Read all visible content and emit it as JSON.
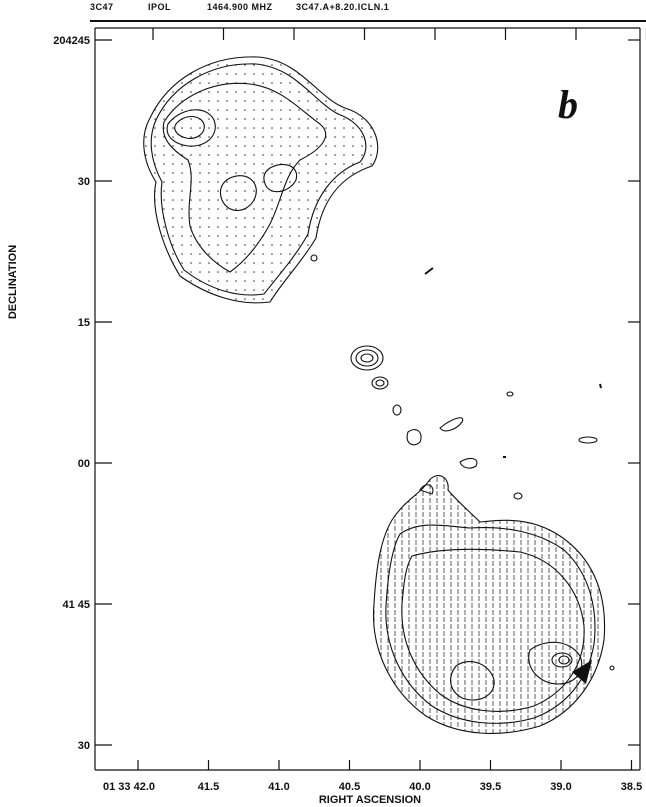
{
  "header": {
    "source": "3C47",
    "stokes": "IPOL",
    "frequency": "1464.900 MHZ",
    "file": "3C47.A+8.20.ICLN.1"
  },
  "panel_label": "b",
  "y_axis": {
    "label": "DECLINATION",
    "ticks": [
      "204245",
      "30",
      "15",
      "00",
      "41 45",
      "30"
    ]
  },
  "x_axis": {
    "label": "RIGHT ASCENSION",
    "ticks": [
      "01 33 42.0",
      "41.5",
      "41.0",
      "40.5",
      "40.0",
      "39.5",
      "39.0",
      "38.5"
    ]
  }
}
